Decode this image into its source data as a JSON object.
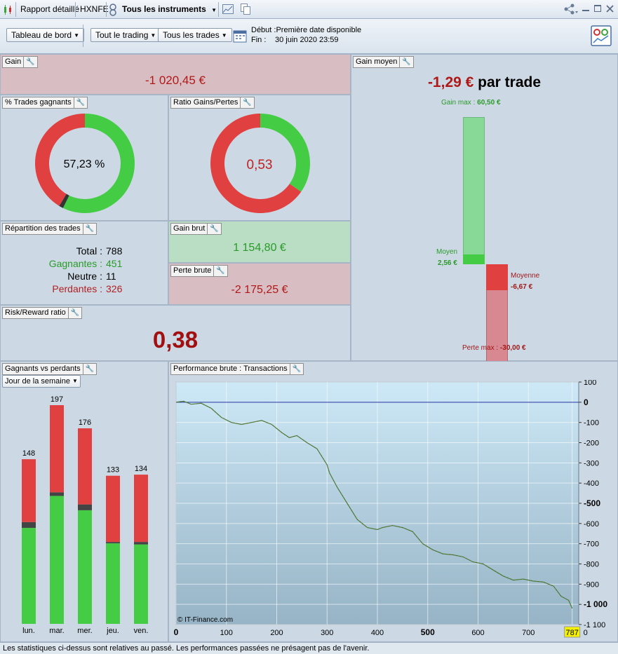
{
  "titlebar": {
    "tab1": "Rapport détaillé",
    "tab2": "HXNFE",
    "tab3": "Tous les instruments"
  },
  "toolbar": {
    "dashboard": "Tableau de bord",
    "trading": "Tout le trading",
    "trades": "Tous les trades",
    "debut_label": "Début :",
    "debut_value": "Première date disponible",
    "fin_label": "Fin :",
    "fin_value": "30 juin 2020 23:59"
  },
  "gain": {
    "title": "Gain",
    "value": "-1 020,45 €"
  },
  "pct_gagnants": {
    "title": "% Trades gagnants",
    "value": "57,23 %",
    "win_fraction": 0.5723,
    "neutral_fraction": 0.014
  },
  "ratio": {
    "title": "Ratio Gains/Pertes",
    "value": "0,53",
    "win_fraction": 0.347
  },
  "repartition": {
    "title": "Répartition des trades",
    "rows": [
      {
        "label": "Total :",
        "value": "788",
        "color": "#000000"
      },
      {
        "label": "Gagnantes :",
        "value": "451",
        "color": "#2a9a2a"
      },
      {
        "label": "Neutre :",
        "value": "11",
        "color": "#000000"
      },
      {
        "label": "Perdantes :",
        "value": "326",
        "color": "#b02020"
      }
    ]
  },
  "gain_brut": {
    "title": "Gain brut",
    "value": "1 154,80 €"
  },
  "perte_brute": {
    "title": "Perte brute",
    "value": "-2 175,25 €"
  },
  "risk_reward": {
    "title": "Risk/Reward ratio",
    "value": "0,38"
  },
  "gain_moyen": {
    "title": "Gain moyen",
    "value": "-1,29 €",
    "suffix": "par trade",
    "gain_max_label": "Gain max :",
    "gain_max_value": "60,50 €",
    "moyen_label": "Moyen",
    "moyen_value": "2,56 €",
    "moyenne_label": "Moyenne",
    "moyenne_value": "-6,67 €",
    "perte_max_label": "Perte max :",
    "perte_max_value": "-30,00 €",
    "gain_max": 60.5,
    "moyen": 2.56,
    "moyenne": -6.67,
    "perte_max": -30.0
  },
  "gvp": {
    "title": "Gagnants vs perdants",
    "dropdown": "Jour de la semaine",
    "colors": {
      "win": "#44cc44",
      "loss": "#e04040",
      "neutral": "#444444"
    },
    "days": [
      {
        "label": "lun.",
        "total": "148",
        "win": 87,
        "neutral": 4,
        "loss": 57
      },
      {
        "label": "mar.",
        "total": "197",
        "win": 116,
        "neutral": 2,
        "loss": 79
      },
      {
        "label": "mer.",
        "total": "176",
        "win": 103,
        "neutral": 4,
        "loss": 69
      },
      {
        "label": "jeu.",
        "total": "133",
        "win": 73,
        "neutral": 0,
        "loss": 60
      },
      {
        "label": "ven.",
        "total": "134",
        "win": 72,
        "neutral": 1,
        "loss": 61
      }
    ]
  },
  "chart_data": {
    "type": "line",
    "title": "Performance brute : Transactions",
    "xlabel": "",
    "ylabel": "",
    "xlim": [
      0,
      800
    ],
    "ylim": [
      -1100,
      100
    ],
    "x_ticks": [
      "0",
      "100",
      "200",
      "300",
      "400",
      "500",
      "600",
      "700",
      "787"
    ],
    "x_tick_values": [
      0,
      100,
      200,
      300,
      400,
      500,
      600,
      700,
      787
    ],
    "x_last_tick": "0",
    "y_ticks": [
      "100",
      "0",
      "-100",
      "-200",
      "-300",
      "-400",
      "-500",
      "-600",
      "-700",
      "-800",
      "-900",
      "-1 000",
      "-1 100"
    ],
    "y_tick_values": [
      100,
      0,
      -100,
      -200,
      -300,
      -400,
      -500,
      -600,
      -700,
      -800,
      -900,
      -1000,
      -1100
    ],
    "watermark": "© IT-Finance.com",
    "series": [
      {
        "x": [
          0,
          15,
          30,
          50,
          70,
          90,
          110,
          130,
          150,
          170,
          190,
          210,
          225,
          240,
          260,
          280,
          290,
          300,
          305,
          320,
          340,
          360,
          380,
          400,
          410,
          430,
          450,
          470,
          490,
          510,
          530,
          550,
          570,
          590,
          610,
          630,
          650,
          670,
          690,
          710,
          730,
          750,
          765,
          780,
          787
        ],
        "values": [
          0,
          5,
          -10,
          -5,
          -30,
          -75,
          -100,
          -110,
          -100,
          -90,
          -110,
          -150,
          -175,
          -165,
          -200,
          -230,
          -270,
          -310,
          -350,
          -420,
          -500,
          -580,
          -620,
          -630,
          -620,
          -610,
          -620,
          -640,
          -700,
          -730,
          -750,
          -755,
          -765,
          -790,
          -800,
          -830,
          -860,
          -880,
          -875,
          -885,
          -890,
          -910,
          -960,
          -980,
          -1020
        ]
      }
    ]
  }
}
